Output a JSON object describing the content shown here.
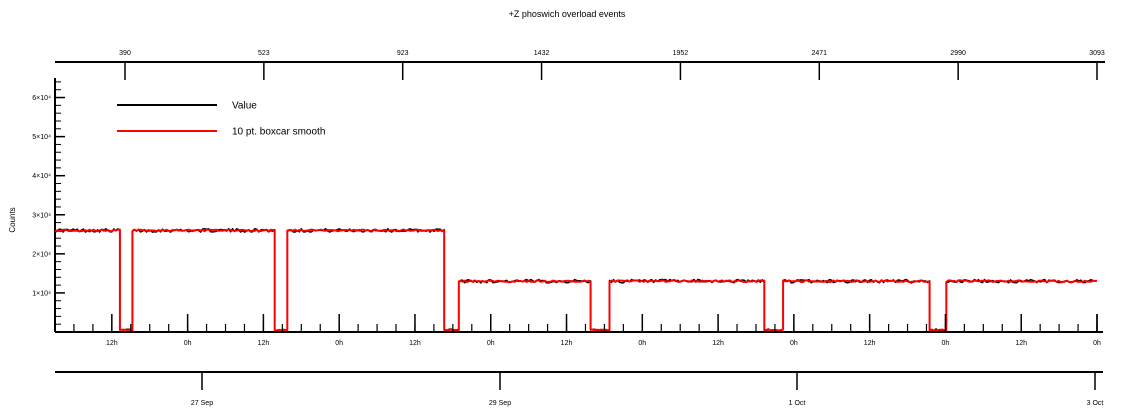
{
  "chart_data": {
    "type": "line",
    "title": "+Z phoswich overload events",
    "ylabel": "Counts",
    "xlabel": "",
    "ylim": [
      0,
      65000
    ],
    "y_ticks": [
      {
        "value": 10000,
        "label": "1×10⁴"
      },
      {
        "value": 20000,
        "label": "2×10⁴"
      },
      {
        "value": 30000,
        "label": "3×10⁴"
      },
      {
        "value": 40000,
        "label": "4×10⁴"
      },
      {
        "value": 50000,
        "label": "5×10⁴"
      },
      {
        "value": 60000,
        "label": "6×10⁴"
      }
    ],
    "time_axis": {
      "start": "2009-09-26T03:00",
      "end": "2009-10-03T00:00",
      "hour_tick_labels": [
        "12h",
        "0h",
        "12h",
        "0h",
        "12h",
        "0h",
        "12h",
        "0h",
        "12h",
        "0h",
        "12h",
        "0h",
        "12h",
        "0h"
      ],
      "date_labels": [
        "27 Sep",
        "29 Sep",
        "1 Oct",
        "3 Oct"
      ]
    },
    "top_axis_labels": [
      "390",
      "523",
      "923",
      "1432",
      "1952",
      "2471",
      "2990",
      "3093"
    ],
    "legend": {
      "position": "top-left",
      "entries": [
        "Value",
        "10 pt. boxcar smooth"
      ]
    },
    "series": [
      {
        "name": "Value",
        "color": "#000000",
        "segments": [
          {
            "start_h": 0.0,
            "end_h": 15.5,
            "level": 26000
          },
          {
            "start_h": 15.5,
            "end_h": 18.5,
            "level": 0
          },
          {
            "start_h": 18.5,
            "end_h": 52.5,
            "level": 26000
          },
          {
            "start_h": 52.5,
            "end_h": 55.5,
            "level": 0
          },
          {
            "start_h": 55.5,
            "end_h": 93.0,
            "level": 26000
          },
          {
            "start_h": 93.0,
            "end_h": 96.5,
            "level": 0
          },
          {
            "start_h": 96.5,
            "end_h": 128.0,
            "level": 13000
          },
          {
            "start_h": 128.0,
            "end_h": 132.5,
            "level": 0
          },
          {
            "start_h": 132.5,
            "end_h": 169.5,
            "level": 13000
          },
          {
            "start_h": 169.5,
            "end_h": 174.0,
            "level": 0
          },
          {
            "start_h": 174.0,
            "end_h": 209.0,
            "level": 13000
          },
          {
            "start_h": 209.0,
            "end_h": 213.0,
            "level": 0
          },
          {
            "start_h": 213.0,
            "end_h": 249.0,
            "level": 13000
          }
        ]
      },
      {
        "name": "10 pt. boxcar smooth",
        "color": "#ff0000",
        "segments": [
          {
            "start_h": 0.0,
            "end_h": 15.5,
            "level": 26000
          },
          {
            "start_h": 15.5,
            "end_h": 18.5,
            "level": 0
          },
          {
            "start_h": 18.5,
            "end_h": 52.5,
            "level": 26000
          },
          {
            "start_h": 52.5,
            "end_h": 55.5,
            "level": 0
          },
          {
            "start_h": 55.5,
            "end_h": 93.0,
            "level": 26000
          },
          {
            "start_h": 93.0,
            "end_h": 96.5,
            "level": 0
          },
          {
            "start_h": 96.5,
            "end_h": 128.0,
            "level": 13000
          },
          {
            "start_h": 128.0,
            "end_h": 132.5,
            "level": 0
          },
          {
            "start_h": 132.5,
            "end_h": 169.5,
            "level": 13000
          },
          {
            "start_h": 169.5,
            "end_h": 174.0,
            "level": 0
          },
          {
            "start_h": 174.0,
            "end_h": 209.0,
            "level": 13000
          },
          {
            "start_h": 209.0,
            "end_h": 213.0,
            "level": 0
          },
          {
            "start_h": 213.0,
            "end_h": 249.0,
            "level": 13000
          }
        ]
      }
    ]
  }
}
